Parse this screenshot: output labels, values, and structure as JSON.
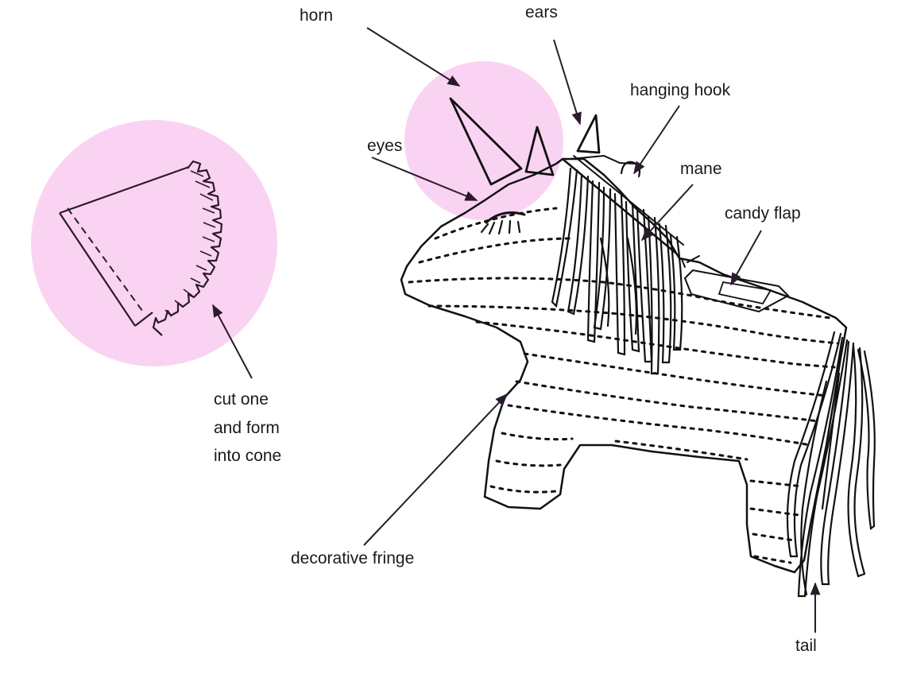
{
  "labels": {
    "horn": "horn",
    "ears": "ears",
    "hanging_hook": "hanging hook",
    "eyes": "eyes",
    "mane": "mane",
    "candy_flap": "candy flap",
    "cone_instruction_line1": "cut one",
    "cone_instruction_line2": "and form",
    "cone_instruction_line3": "into cone",
    "decorative_fringe": "decorative fringe",
    "tail": "tail"
  },
  "colors": {
    "highlight_circle": "#fbd3f2",
    "arrow": "#2a1a2e",
    "outline": "#111111"
  }
}
